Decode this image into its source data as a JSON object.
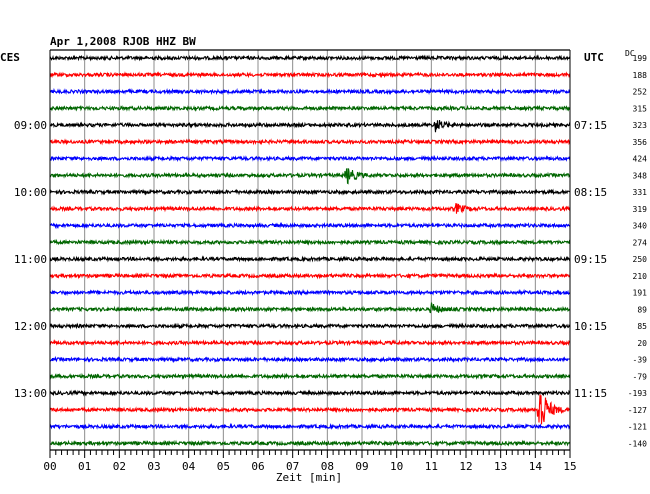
{
  "chart_data": {
    "type": "line",
    "title": "Apr 1,2008   RJOB HHZ BW",
    "left_timezone": "CES",
    "right_timezone": "UTC",
    "dc_label": "DC",
    "xlabel": "Zeit [min]",
    "xlim": [
      0,
      15
    ],
    "x_ticks": [
      "00",
      "01",
      "02",
      "03",
      "04",
      "05",
      "06",
      "07",
      "08",
      "09",
      "10",
      "11",
      "12",
      "13",
      "14",
      "15"
    ],
    "grid": true,
    "trace_colors": [
      "#000000",
      "#ff0000",
      "#0000ff",
      "#006600"
    ],
    "traces_per_hour": 4,
    "left_hour_labels": [
      {
        "trace_index": 4,
        "label": "09:00"
      },
      {
        "trace_index": 8,
        "label": "10:00"
      },
      {
        "trace_index": 12,
        "label": "11:00"
      },
      {
        "trace_index": 16,
        "label": "12:00"
      },
      {
        "trace_index": 20,
        "label": "13:00"
      }
    ],
    "right_hour_labels": [
      {
        "trace_index": 4,
        "label": "07:15"
      },
      {
        "trace_index": 8,
        "label": "08:15"
      },
      {
        "trace_index": 12,
        "label": "09:15"
      },
      {
        "trace_index": 16,
        "label": "10:15"
      },
      {
        "trace_index": 20,
        "label": "11:15"
      }
    ],
    "dc_offsets": [
      "199",
      "188",
      "252",
      "315",
      "323",
      "356",
      "424",
      "348",
      "331",
      "319",
      "340",
      "274",
      "250",
      "210",
      "191",
      "89",
      "85",
      "20",
      "-39",
      "-79",
      "-193",
      "-127",
      "-121",
      "-140"
    ],
    "events": [
      {
        "trace_index": 4,
        "minute": 11.1,
        "amplitude": 7
      },
      {
        "trace_index": 7,
        "minute": 8.55,
        "amplitude": 9
      },
      {
        "trace_index": 9,
        "minute": 11.7,
        "amplitude": 5
      },
      {
        "trace_index": 15,
        "minute": 11.0,
        "amplitude": 6
      },
      {
        "trace_index": 21,
        "minute": 14.1,
        "amplitude": 32
      }
    ]
  }
}
